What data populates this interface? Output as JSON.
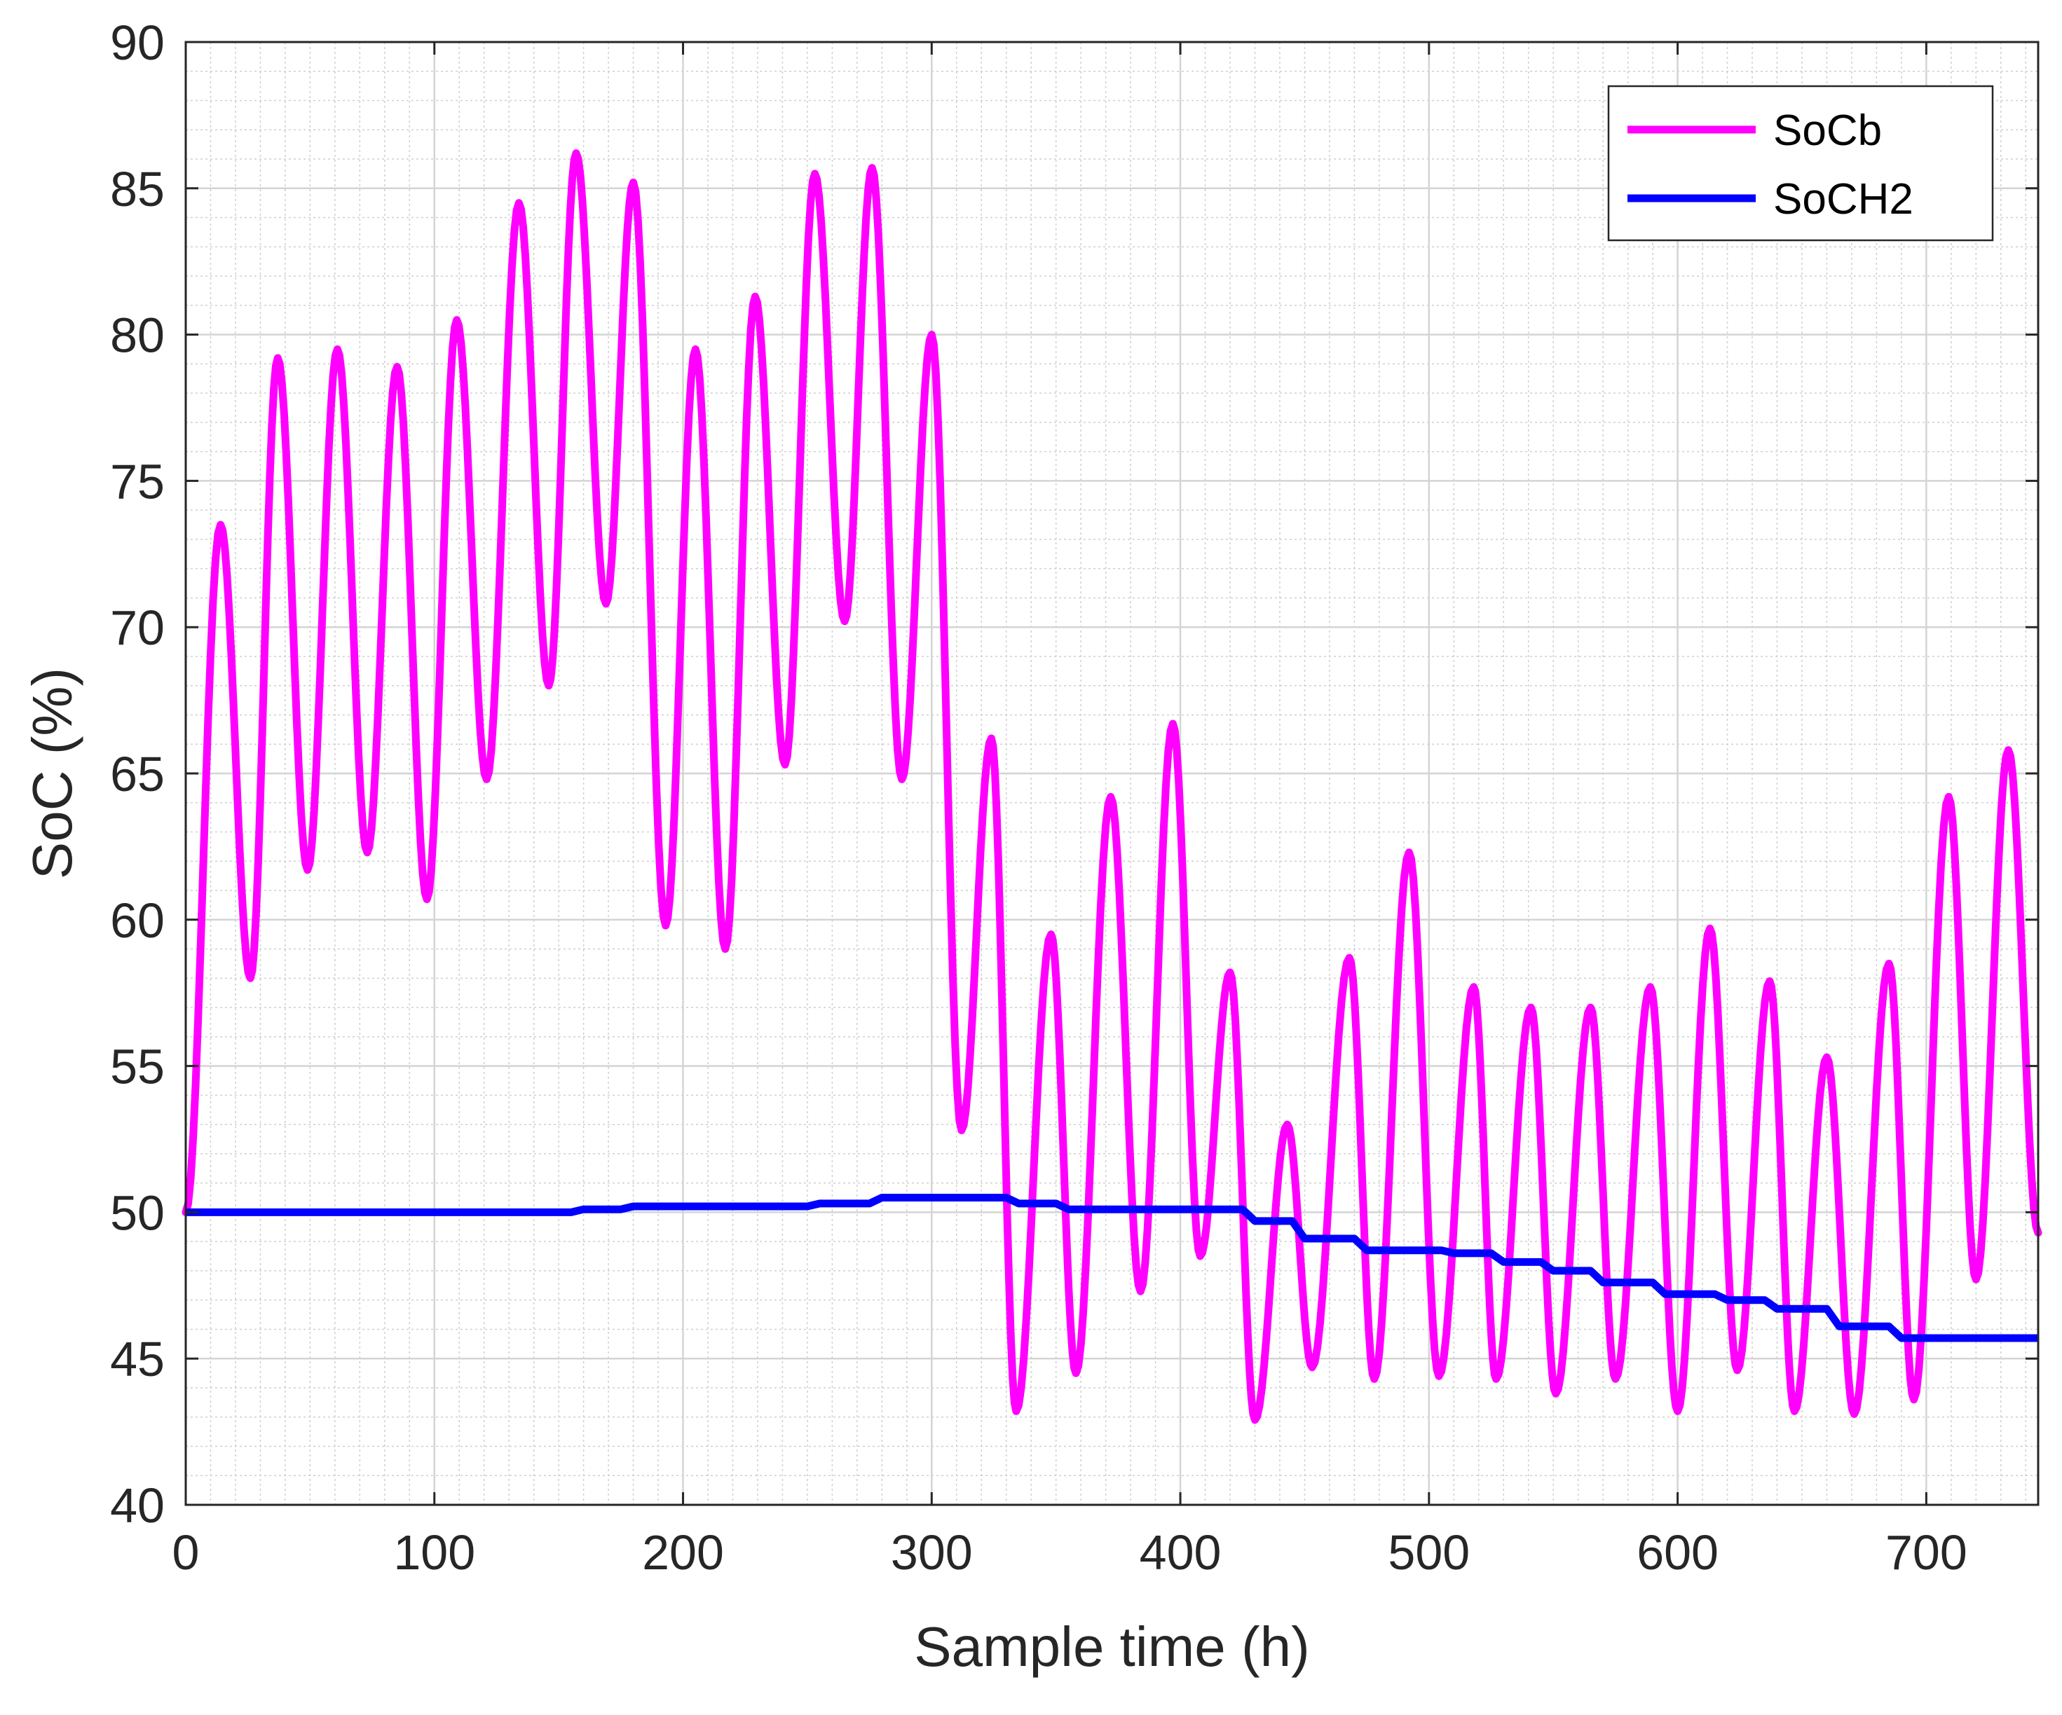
{
  "chart_data": {
    "type": "line",
    "xlabel": "Sample time (h)",
    "ylabel": "SoC (%)",
    "xlim": [
      0,
      745
    ],
    "ylim": [
      40,
      90
    ],
    "xticks": [
      0,
      100,
      200,
      300,
      400,
      500,
      600,
      700
    ],
    "yticks": [
      40,
      45,
      50,
      55,
      60,
      65,
      70,
      75,
      80,
      85,
      90
    ],
    "x_minor_step": 10,
    "y_minor_step": 1,
    "grid": true,
    "legend_position": "top-right",
    "series": [
      {
        "name": "SoCb",
        "color": "#ff00ff",
        "extrema": [
          [
            0,
            50
          ],
          [
            14,
            73.5
          ],
          [
            26,
            58
          ],
          [
            37,
            79.2
          ],
          [
            49,
            61.7
          ],
          [
            61,
            79.5
          ],
          [
            73,
            62.3
          ],
          [
            85,
            78.9
          ],
          [
            97,
            60.7
          ],
          [
            109,
            80.5
          ],
          [
            121,
            64.8
          ],
          [
            134,
            84.5
          ],
          [
            146,
            68
          ],
          [
            157,
            86.2
          ],
          [
            169,
            70.8
          ],
          [
            180,
            85.2
          ],
          [
            193,
            59.8
          ],
          [
            205,
            79.5
          ],
          [
            217,
            59
          ],
          [
            229,
            81.3
          ],
          [
            241,
            65.3
          ],
          [
            253,
            85.5
          ],
          [
            265,
            70.2
          ],
          [
            276,
            85.7
          ],
          [
            288,
            64.8
          ],
          [
            300,
            80
          ],
          [
            312,
            52.8
          ],
          [
            324,
            66.2
          ],
          [
            334,
            43.2
          ],
          [
            348,
            59.5
          ],
          [
            358,
            44.5
          ],
          [
            372,
            64.2
          ],
          [
            384,
            47.3
          ],
          [
            397,
            66.7
          ],
          [
            408,
            48.5
          ],
          [
            420,
            58.2
          ],
          [
            430,
            42.9
          ],
          [
            443,
            53
          ],
          [
            453,
            44.7
          ],
          [
            468,
            58.7
          ],
          [
            478,
            44.3
          ],
          [
            492,
            62.3
          ],
          [
            504,
            44.4
          ],
          [
            518,
            57.7
          ],
          [
            527,
            44.3
          ],
          [
            541,
            57
          ],
          [
            551,
            43.8
          ],
          [
            565,
            57
          ],
          [
            575,
            44.3
          ],
          [
            589,
            57.7
          ],
          [
            600,
            43.2
          ],
          [
            613,
            59.7
          ],
          [
            624,
            44.6
          ],
          [
            637,
            57.9
          ],
          [
            647,
            43.2
          ],
          [
            660,
            55.3
          ],
          [
            671,
            43.1
          ],
          [
            685,
            58.5
          ],
          [
            695,
            43.6
          ],
          [
            709,
            64.2
          ],
          [
            720,
            47.7
          ],
          [
            733,
            65.8
          ],
          [
            745,
            49.3
          ]
        ]
      },
      {
        "name": "SoCH2",
        "color": "#0000ff",
        "points": [
          [
            0,
            50
          ],
          [
            155,
            50
          ],
          [
            160,
            50.1
          ],
          [
            175,
            50.1
          ],
          [
            180,
            50.2
          ],
          [
            250,
            50.2
          ],
          [
            255,
            50.3
          ],
          [
            275,
            50.3
          ],
          [
            280,
            50.5
          ],
          [
            330,
            50.5
          ],
          [
            335,
            50.3
          ],
          [
            350,
            50.3
          ],
          [
            355,
            50.1
          ],
          [
            425,
            50.1
          ],
          [
            430,
            49.7
          ],
          [
            445,
            49.7
          ],
          [
            450,
            49.1
          ],
          [
            470,
            49.1
          ],
          [
            475,
            48.7
          ],
          [
            505,
            48.7
          ],
          [
            510,
            48.6
          ],
          [
            525,
            48.6
          ],
          [
            530,
            48.3
          ],
          [
            545,
            48.3
          ],
          [
            550,
            48
          ],
          [
            565,
            48
          ],
          [
            570,
            47.6
          ],
          [
            590,
            47.6
          ],
          [
            595,
            47.2
          ],
          [
            615,
            47.2
          ],
          [
            620,
            47
          ],
          [
            635,
            47
          ],
          [
            640,
            46.7
          ],
          [
            660,
            46.7
          ],
          [
            665,
            46.1
          ],
          [
            685,
            46.1
          ],
          [
            690,
            45.7
          ],
          [
            745,
            45.7
          ]
        ]
      }
    ]
  }
}
